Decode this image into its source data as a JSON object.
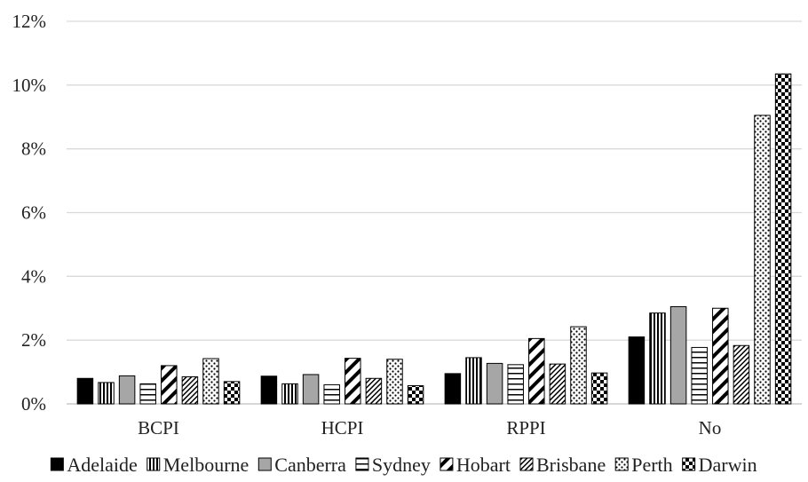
{
  "chart_data": {
    "type": "bar",
    "title": "",
    "xlabel": "",
    "ylabel": "",
    "categories": [
      "BCPI",
      "HCPI",
      "RPPI",
      "No"
    ],
    "ylim": [
      0,
      12
    ],
    "yticks": [
      "0%",
      "2%",
      "4%",
      "6%",
      "8%",
      "10%",
      "12%"
    ],
    "grid": true,
    "legend_position": "bottom",
    "series": [
      {
        "name": "Adelaide",
        "pattern": "solid-black",
        "values": [
          0.8,
          0.87,
          0.95,
          2.1
        ]
      },
      {
        "name": "Melbourne",
        "pattern": "vertical-stripes",
        "values": [
          0.67,
          0.63,
          1.45,
          2.85
        ]
      },
      {
        "name": "Canberra",
        "pattern": "solid-gray",
        "values": [
          0.88,
          0.92,
          1.27,
          3.05
        ]
      },
      {
        "name": "Sydney",
        "pattern": "horizontal-stripes",
        "values": [
          0.63,
          0.6,
          1.23,
          1.77
        ]
      },
      {
        "name": "Hobart",
        "pattern": "wide-diagonal",
        "values": [
          1.2,
          1.43,
          2.05,
          3.0
        ]
      },
      {
        "name": "Brisbane",
        "pattern": "narrow-diagonal",
        "values": [
          0.85,
          0.8,
          1.25,
          1.83
        ]
      },
      {
        "name": "Perth",
        "pattern": "dots",
        "values": [
          1.42,
          1.4,
          2.42,
          9.05
        ]
      },
      {
        "name": "Darwin",
        "pattern": "checker",
        "values": [
          0.7,
          0.57,
          0.97,
          10.35
        ]
      }
    ]
  }
}
